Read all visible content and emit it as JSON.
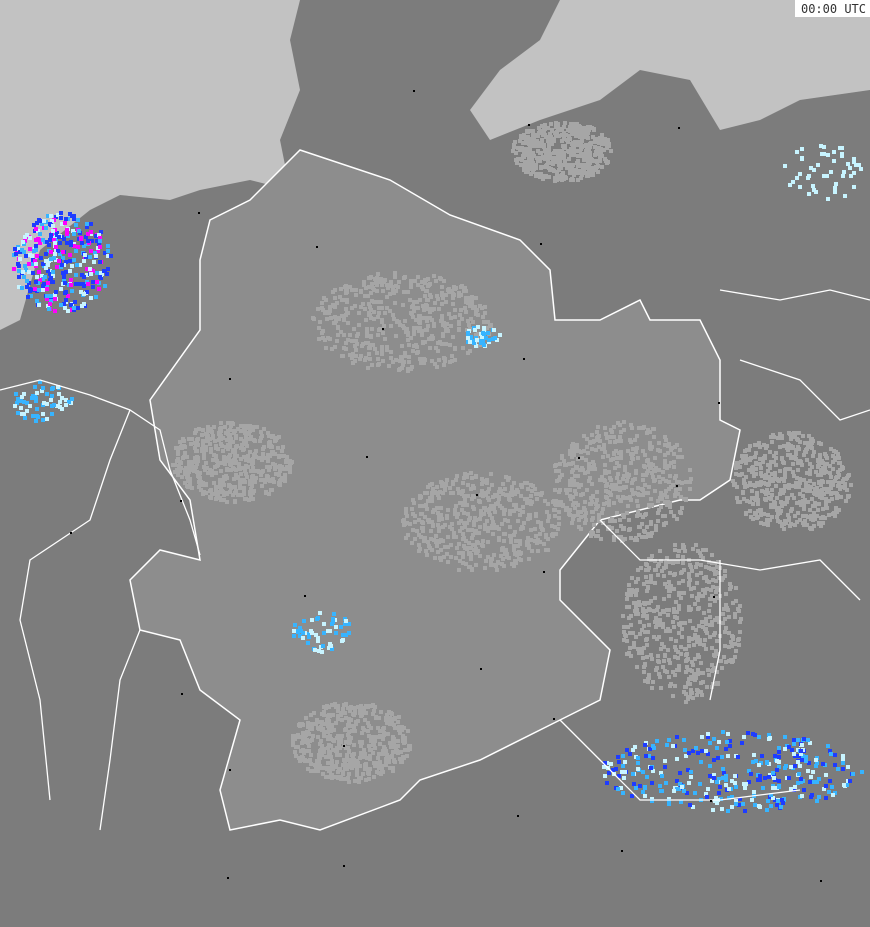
{
  "map": {
    "timestamp": "00:00 UTC",
    "colors": {
      "sea": "#c2c2c2",
      "land_germany": "#8d8d8d",
      "land_neighbors": "#7c7c7c",
      "cloud_light": "#a6a6a6",
      "borders": "#ffffff",
      "city_marker": "#000000",
      "precip_light": "#c8f4ff",
      "precip_medium": "#37b4ff",
      "precip_heavy": "#1e3cff",
      "precip_extreme": "#ff00ff"
    }
  }
}
